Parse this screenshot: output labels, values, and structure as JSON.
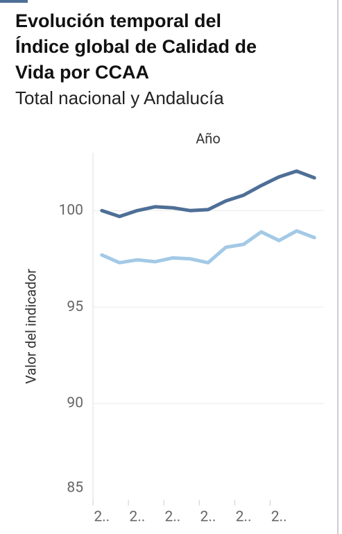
{
  "chart_data": {
    "type": "line",
    "title": "Evolución temporal del Índice global de Calidad de Vida por CCAA",
    "subtitle": "Total nacional y Andalucía",
    "column_header": "Año",
    "y_label": "Valor del indicador",
    "categories": [
      "2..",
      null,
      "2..",
      null,
      "2..",
      null,
      "2..",
      null,
      "2..",
      null,
      "2..",
      null,
      null
    ],
    "series": [
      {
        "color": "#4e6f96",
        "values": [
          100.0,
          99.7,
          100.0,
          100.2,
          100.15,
          100.0,
          100.05,
          100.5,
          100.8,
          101.3,
          101.75,
          102.05,
          101.7
        ]
      },
      {
        "color": "#a3c9e6",
        "values": [
          97.7,
          97.3,
          97.45,
          97.35,
          97.55,
          97.5,
          97.3,
          98.1,
          98.25,
          98.9,
          98.45,
          98.95,
          98.6
        ]
      }
    ],
    "ylim": [
      85,
      103
    ],
    "yticks": [
      85,
      90,
      95,
      100
    ],
    "grid": true
  }
}
